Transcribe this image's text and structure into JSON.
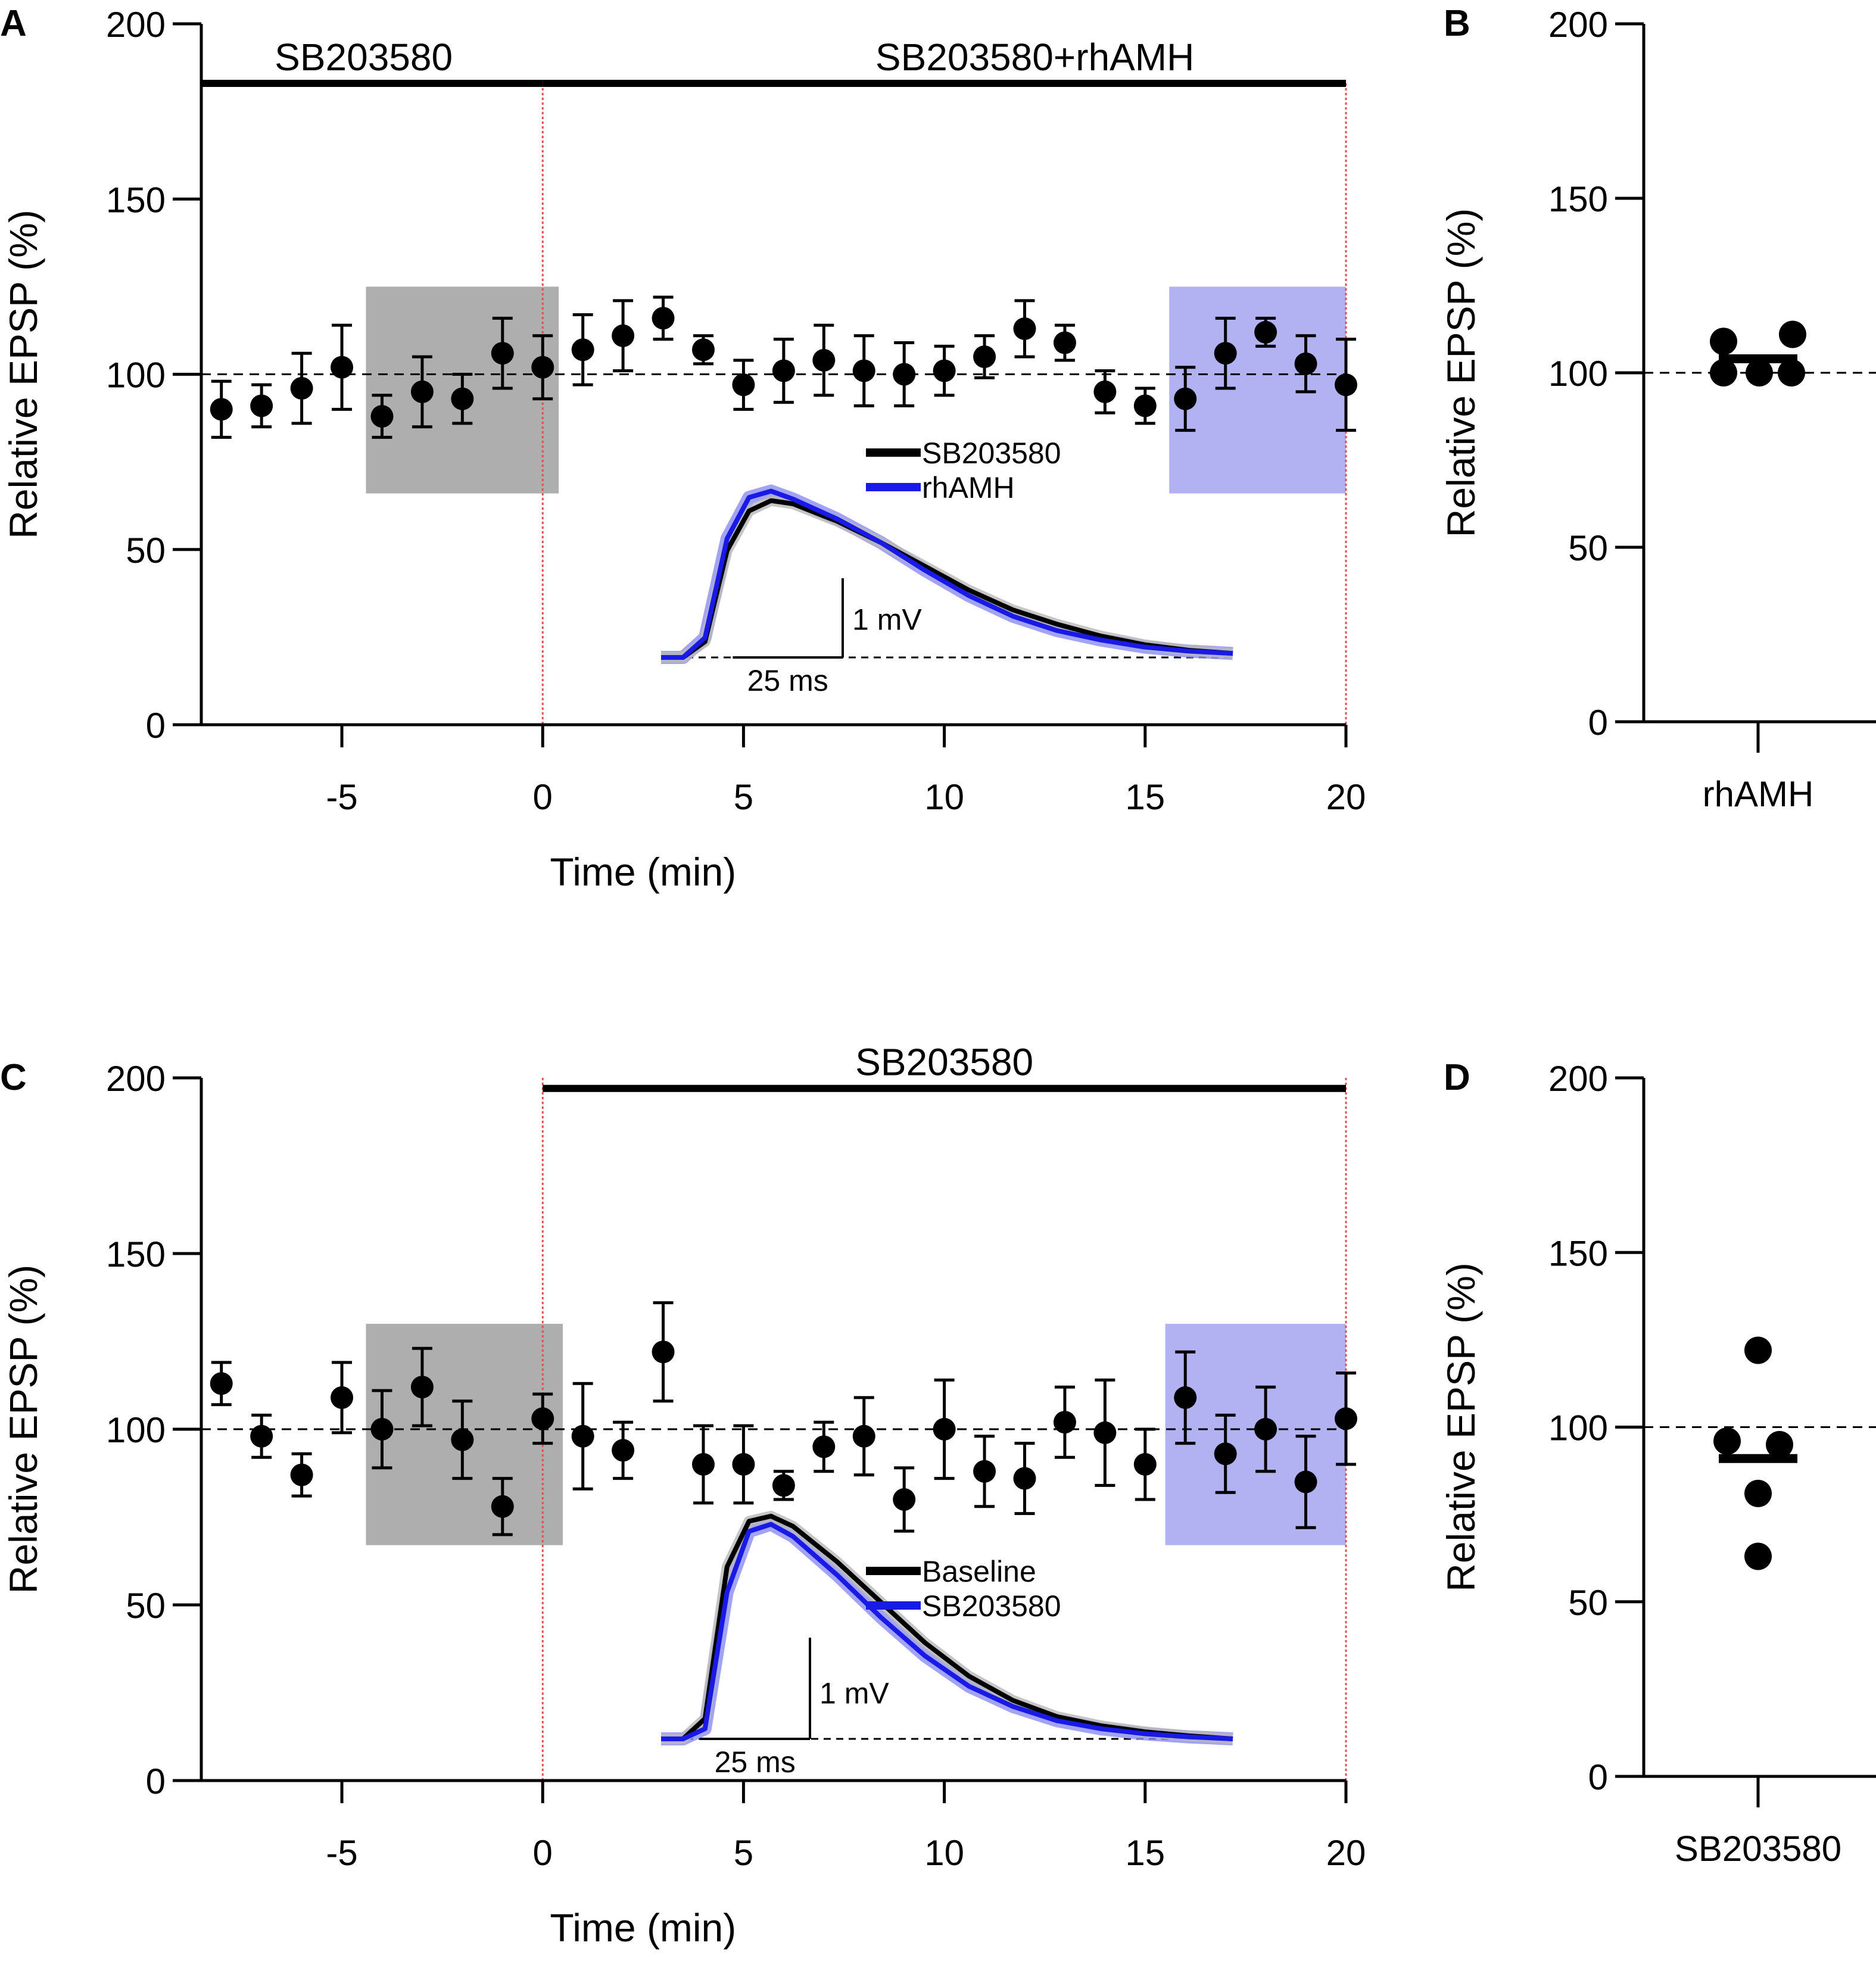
{
  "colors": {
    "ink": "#000000",
    "blue": "#1a1ae6",
    "baseline_shade": "#9a9a9a",
    "treatment_shade": "#9f9ff0",
    "marker_line": "#e05050",
    "trace_blue_band": "#8c8cf0",
    "trace_black_band": "#b8b8b8"
  },
  "chart_data": [
    {
      "panel": "A",
      "type": "scatter",
      "xlabel": "Time (min)",
      "ylabel": "Relative EPSP (%)",
      "xlim": [
        -8.5,
        20
      ],
      "ylim": [
        0,
        200
      ],
      "xticks": [
        -5,
        0,
        5,
        10,
        15,
        20
      ],
      "xtick_labels": [
        "-5",
        "0",
        "5",
        "10",
        "15",
        "20"
      ],
      "yticks": [
        0,
        50,
        100,
        150,
        200
      ],
      "ytick_labels": [
        "0",
        "50",
        "100",
        "150",
        "200"
      ],
      "reference_line": 100,
      "drug_bars": [
        {
          "label": "SB203580",
          "x_start": -8.5,
          "x_end": 0
        },
        {
          "label": "SB203580+rhAMH",
          "x_start": 0,
          "x_end": 20
        }
      ],
      "drug_bar_y": 183,
      "onset_markers": [
        0,
        20
      ],
      "shaded_regions": [
        {
          "name": "baseline",
          "x_start": -4.4,
          "x_end": 0.4,
          "y_start": 66,
          "y_end": 125
        },
        {
          "name": "treatment",
          "x_start": 15.6,
          "x_end": 20,
          "y_start": 66,
          "y_end": 125
        }
      ],
      "series": [
        {
          "name": "EPSP",
          "x": [
            -8,
            -7,
            -6,
            -5,
            -4,
            -3,
            -2,
            -1,
            0,
            1,
            2,
            3,
            4,
            5,
            6,
            7,
            8,
            9,
            10,
            11,
            12,
            13,
            14,
            15,
            16,
            17,
            18,
            19,
            20
          ],
          "y": [
            90,
            91,
            96,
            102,
            88,
            95,
            93,
            106,
            102,
            107,
            111,
            116,
            107,
            97,
            101,
            104,
            101,
            100,
            101,
            105,
            113,
            109,
            95,
            91,
            93,
            106,
            112,
            103,
            97
          ],
          "err": [
            8,
            6,
            10,
            12,
            6,
            10,
            7,
            10,
            9,
            10,
            10,
            6,
            4,
            7,
            9,
            10,
            10,
            9,
            7,
            6,
            8,
            5,
            6,
            5,
            9,
            10,
            4,
            8,
            13
          ]
        }
      ],
      "inset": {
        "legend": [
          {
            "label": "SB203580",
            "color": "#000000"
          },
          {
            "label": "rhAMH",
            "color": "#1a1ae6"
          }
        ],
        "scale_y_label": "1 mV",
        "scale_x_label": "25 ms",
        "trace_time_ms": [
          0,
          5,
          10,
          15,
          20,
          25,
          30,
          40,
          50,
          60,
          70,
          80,
          90,
          100,
          110,
          120,
          130
        ],
        "trace_black_mV": [
          0,
          0,
          0.2,
          1.35,
          1.85,
          1.98,
          1.94,
          1.72,
          1.45,
          1.15,
          0.85,
          0.6,
          0.42,
          0.27,
          0.16,
          0.09,
          0.05
        ],
        "trace_blue_mV": [
          0,
          0,
          0.25,
          1.5,
          2.02,
          2.1,
          2.0,
          1.75,
          1.45,
          1.1,
          0.78,
          0.52,
          0.34,
          0.22,
          0.13,
          0.08,
          0.05
        ]
      }
    },
    {
      "panel": "B",
      "type": "scatter",
      "category": "rhAMH",
      "ylabel": "Relative EPSP (%)",
      "ylim": [
        0,
        200
      ],
      "yticks": [
        0,
        50,
        100,
        150,
        200
      ],
      "ytick_labels": [
        "0",
        "50",
        "100",
        "150",
        "200"
      ],
      "reference_line": 100,
      "values": [
        109,
        100,
        100,
        100,
        111
      ],
      "mean": 104
    },
    {
      "panel": "C",
      "type": "scatter",
      "xlabel": "Time (min)",
      "ylabel": "Relative EPSP (%)",
      "xlim": [
        -8.5,
        20
      ],
      "ylim": [
        0,
        200
      ],
      "xticks": [
        -5,
        0,
        5,
        10,
        15,
        20
      ],
      "xtick_labels": [
        "-5",
        "0",
        "5",
        "10",
        "15",
        "20"
      ],
      "yticks": [
        0,
        50,
        100,
        150,
        200
      ],
      "ytick_labels": [
        "0",
        "50",
        "100",
        "150",
        "200"
      ],
      "reference_line": 100,
      "drug_bars": [
        {
          "label": "SB203580",
          "x_start": 0,
          "x_end": 20
        }
      ],
      "drug_bar_y": 197,
      "onset_markers": [
        0,
        20
      ],
      "shaded_regions": [
        {
          "name": "baseline",
          "x_start": -4.4,
          "x_end": 0.5,
          "y_start": 67,
          "y_end": 130
        },
        {
          "name": "treatment",
          "x_start": 15.5,
          "x_end": 20,
          "y_start": 67,
          "y_end": 130
        }
      ],
      "series": [
        {
          "name": "EPSP",
          "x": [
            -8,
            -7,
            -6,
            -5,
            -4,
            -3,
            -2,
            -1,
            0,
            1,
            2,
            3,
            4,
            5,
            6,
            7,
            8,
            9,
            10,
            11,
            12,
            13,
            14,
            15,
            16,
            17,
            18,
            19,
            20
          ],
          "y": [
            113,
            98,
            87,
            109,
            100,
            112,
            97,
            78,
            103,
            98,
            94,
            122,
            90,
            90,
            84,
            95,
            98,
            80,
            100,
            88,
            86,
            102,
            99,
            90,
            109,
            93,
            100,
            85,
            103
          ],
          "err": [
            6,
            6,
            6,
            10,
            11,
            11,
            11,
            8,
            7,
            15,
            8,
            14,
            11,
            11,
            4,
            7,
            11,
            9,
            14,
            10,
            10,
            10,
            15,
            10,
            13,
            11,
            12,
            13,
            13
          ]
        }
      ],
      "inset": {
        "legend": [
          {
            "label": "Baseline",
            "color": "#000000"
          },
          {
            "label": "SB203580",
            "color": "#1a1ae6"
          }
        ],
        "scale_y_label": "1 mV",
        "scale_x_label": "25 ms",
        "trace_time_ms": [
          0,
          5,
          10,
          15,
          20,
          25,
          30,
          40,
          50,
          60,
          70,
          80,
          90,
          100,
          110,
          120,
          130
        ],
        "trace_black_mV": [
          0,
          0,
          0.2,
          1.7,
          2.15,
          2.2,
          2.1,
          1.75,
          1.35,
          0.95,
          0.62,
          0.38,
          0.22,
          0.13,
          0.07,
          0.03,
          0.0
        ],
        "trace_blue_mV": [
          0,
          0,
          0.1,
          1.45,
          2.05,
          2.12,
          2.0,
          1.62,
          1.2,
          0.82,
          0.52,
          0.32,
          0.18,
          0.1,
          0.05,
          0.02,
          0.0
        ]
      }
    },
    {
      "panel": "D",
      "type": "scatter",
      "category": "SB203580",
      "ylabel": "Relative EPSP (%)",
      "ylim": [
        0,
        200
      ],
      "yticks": [
        0,
        50,
        100,
        150,
        200
      ],
      "ytick_labels": [
        "0",
        "50",
        "100",
        "150",
        "200"
      ],
      "reference_line": 100,
      "values": [
        122,
        96,
        95,
        81,
        63
      ],
      "mean": 91
    }
  ]
}
